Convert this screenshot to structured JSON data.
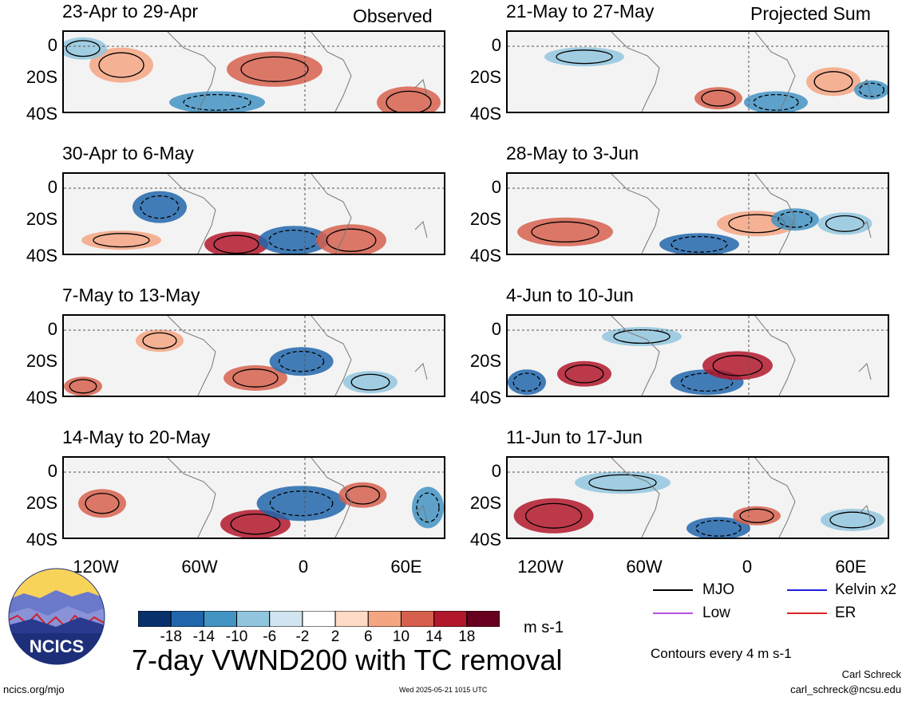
{
  "chart_data": {
    "type": "heatmap",
    "title": "7-day VWND200 with TC removal",
    "units": "m s-1",
    "columns": [
      {
        "label": "Observed",
        "panels": [
          "23-Apr to 29-Apr",
          "30-Apr to 6-May",
          "7-May to 13-May",
          "14-May to 20-May"
        ]
      },
      {
        "label": "Projected Sum",
        "panels": [
          "21-May to 27-May",
          "28-May to 3-Jun",
          "4-Jun to 10-Jun",
          "11-Jun to 17-Jun"
        ]
      }
    ],
    "x_ticks": [
      "120W",
      "60W",
      "0",
      "60E"
    ],
    "y_ticks": [
      "0",
      "20S",
      "40S"
    ],
    "colorbar": {
      "labels": [
        "-18",
        "-14",
        "-10",
        "-6",
        "-2",
        "2",
        "6",
        "10",
        "14",
        "18"
      ],
      "colors": [
        "#08306b",
        "#2166ac",
        "#4393c3",
        "#92c5de",
        "#d1e5f0",
        "#ffffff",
        "#fddbc7",
        "#f4a582",
        "#d6604d",
        "#b2182b",
        "#67001f"
      ]
    },
    "legend": [
      {
        "name": "MJO",
        "color": "#000000"
      },
      {
        "name": "Kelvin x2",
        "color": "#1f1fd6"
      },
      {
        "name": "Low",
        "color": "#b84fe0"
      },
      {
        "name": "ER",
        "color": "#e02020"
      }
    ],
    "contour_note": "Contours every 4 m s-1"
  },
  "logo": {
    "text": "NCICS"
  },
  "footer": {
    "left": "ncics.org/mjo",
    "center": "Wed 2025-05-21 1015 UTC",
    "author": "Carl Schreck",
    "email": "carl_schreck@ncsu.edu"
  }
}
